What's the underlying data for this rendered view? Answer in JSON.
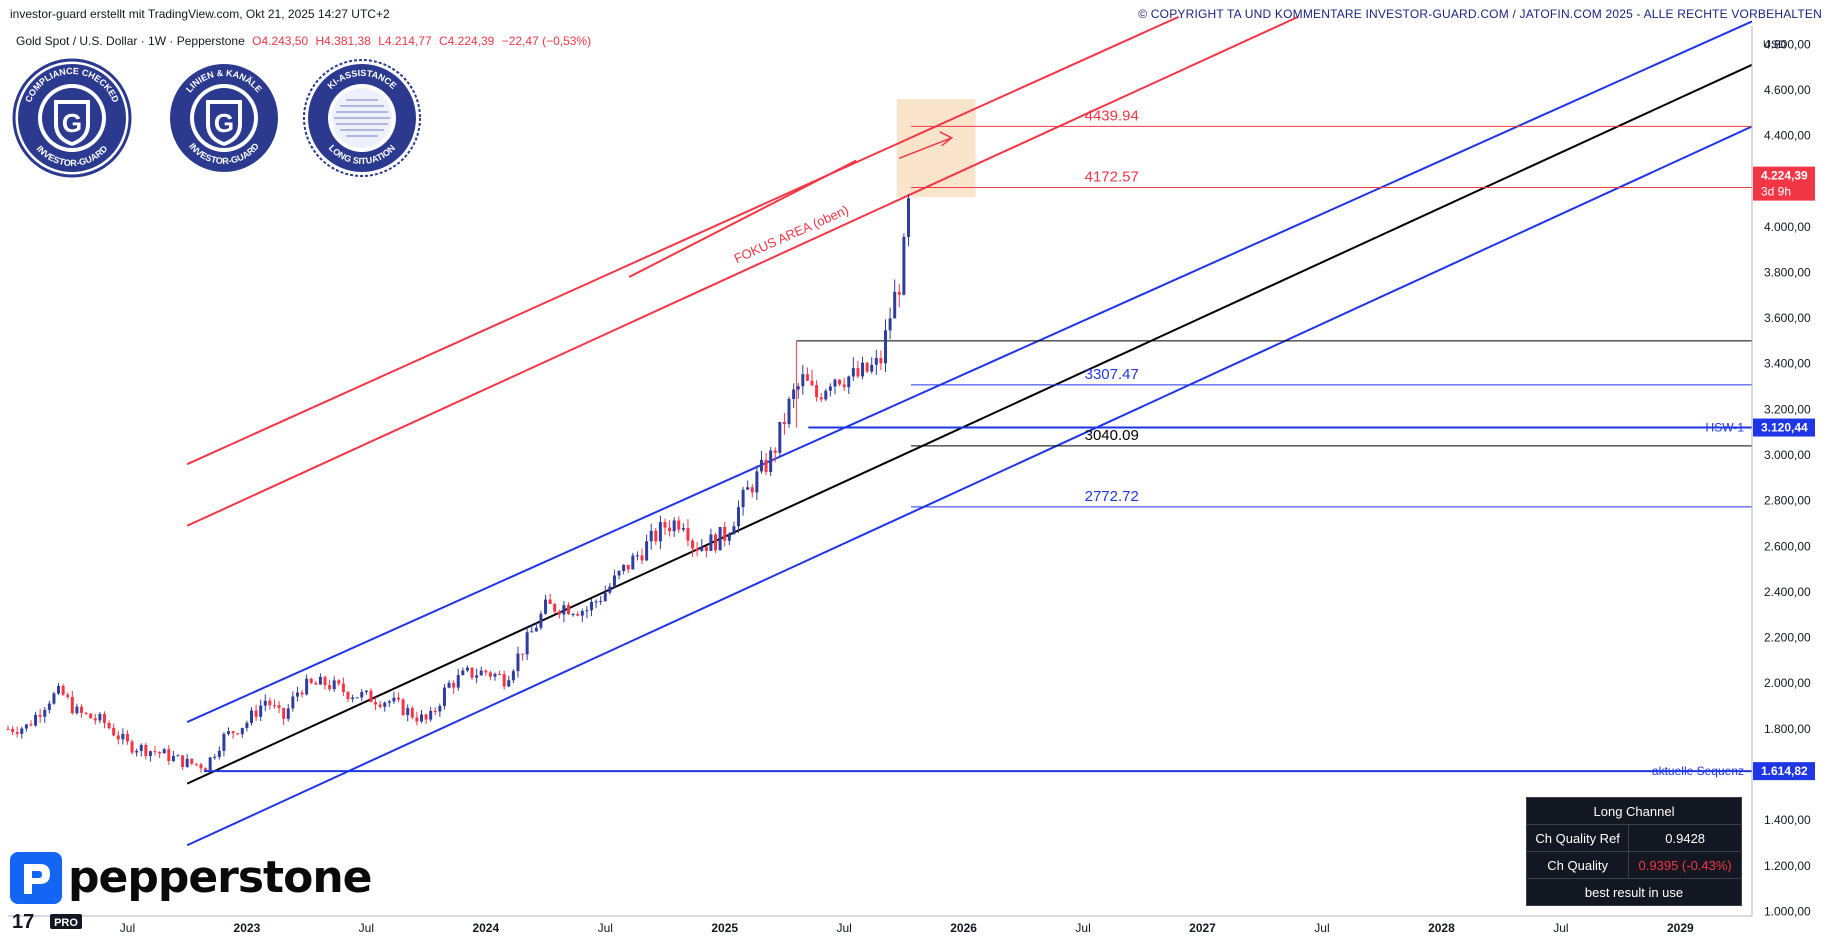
{
  "header": {
    "author_line": "investor-guard erstellt mit TradingView.com, Okt 21, 2025 14:27 UTC+2",
    "copyright": "© COPYRIGHT TA UND KOMMENTARE INVESTOR-GUARD.COM / JATOFIN.COM 2025 - ALLE RECHTE VORBEHALTEN"
  },
  "legend": {
    "symbol": "Gold Spot / U.S. Dollar · 1W · Pepperstone",
    "open": "O4.243,50",
    "high": "H4.381,38",
    "low": "L4.214,77",
    "close": "C4.224,39",
    "change": "−22,47 (−0,53%)"
  },
  "badges": [
    {
      "top": "COMPLIANCE CHECKED",
      "bottom": "INVESTOR-GUARD"
    },
    {
      "top": "LINIEN & KANÄLE",
      "bottom": "INVESTOR-GUARD"
    },
    {
      "top": "KI-ASSISTANCE",
      "bottom": "LONG SITUATION"
    }
  ],
  "logo": {
    "word": "pepperstone",
    "tv": "17",
    "tv_pro": "PRO"
  },
  "quality_table": {
    "title": "Long Channel",
    "rows": [
      {
        "label": "Ch Quality Ref",
        "value": "0.9428"
      },
      {
        "label": "Ch Quality",
        "value": "0.9395 (-0.43%)"
      }
    ],
    "footer": "best result in use"
  },
  "colors": {
    "up": "#2f3e9e",
    "down": "#f23645",
    "red_line": "#f23645",
    "blue_line": "#1e36e6",
    "mid_line": "#000000",
    "focus": "#f8c99a"
  },
  "chart_data": {
    "type": "candlestick",
    "title": "Gold Spot / U.S. Dollar · 1W · Pepperstone",
    "currency_label": "USD",
    "y_ticks": [
      "1.000,00",
      "1.200,00",
      "1.400,00",
      "1.600,00",
      "1.800,00",
      "2.000,00",
      "2.200,00",
      "2.400,00",
      "2.600,00",
      "2.800,00",
      "3.000,00",
      "3.200,00",
      "3.400,00",
      "3.600,00",
      "3.800,00",
      "4.000,00",
      "4.200,00",
      "4.400,00",
      "4.600,00",
      "4.800,00"
    ],
    "y_tick_values": [
      1000,
      1200,
      1400,
      1600,
      1800,
      2000,
      2200,
      2400,
      2600,
      2800,
      3000,
      3200,
      3400,
      3600,
      3800,
      4000,
      4200,
      4400,
      4600,
      4800
    ],
    "ylim": [
      980,
      4880
    ],
    "x_ticks": [
      {
        "label": "Jul",
        "t": 2022.5
      },
      {
        "label": "2023",
        "t": 2023.0
      },
      {
        "label": "Jul",
        "t": 2023.5
      },
      {
        "label": "2024",
        "t": 2024.0
      },
      {
        "label": "Jul",
        "t": 2024.5
      },
      {
        "label": "2025",
        "t": 2025.0
      },
      {
        "label": "Jul",
        "t": 2025.5
      },
      {
        "label": "2026",
        "t": 2026.0
      },
      {
        "label": "Jul",
        "t": 2026.5
      },
      {
        "label": "2027",
        "t": 2027.0
      },
      {
        "label": "Jul",
        "t": 2027.5
      },
      {
        "label": "2028",
        "t": 2028.0
      },
      {
        "label": "Jul",
        "t": 2028.5
      },
      {
        "label": "2029",
        "t": 2029.0
      }
    ],
    "xlim": [
      2022.0,
      2029.3
    ],
    "price_path": [
      [
        2022.0,
        1800
      ],
      [
        2022.08,
        1810
      ],
      [
        2022.17,
        1930
      ],
      [
        2022.22,
        1960
      ],
      [
        2022.29,
        1870
      ],
      [
        2022.4,
        1830
      ],
      [
        2022.5,
        1730
      ],
      [
        2022.62,
        1700
      ],
      [
        2022.75,
        1650
      ],
      [
        2022.83,
        1640
      ],
      [
        2022.9,
        1760
      ],
      [
        2023.0,
        1830
      ],
      [
        2023.08,
        1930
      ],
      [
        2023.15,
        1840
      ],
      [
        2023.22,
        1980
      ],
      [
        2023.33,
        2000
      ],
      [
        2023.42,
        1960
      ],
      [
        2023.5,
        1940
      ],
      [
        2023.6,
        1920
      ],
      [
        2023.7,
        1860
      ],
      [
        2023.76,
        1830
      ],
      [
        2023.84,
        1990
      ],
      [
        2023.92,
        2040
      ],
      [
        2024.0,
        2050
      ],
      [
        2024.08,
        2020
      ],
      [
        2024.17,
        2180
      ],
      [
        2024.25,
        2330
      ],
      [
        2024.33,
        2340
      ],
      [
        2024.42,
        2320
      ],
      [
        2024.5,
        2400
      ],
      [
        2024.58,
        2500
      ],
      [
        2024.67,
        2600
      ],
      [
        2024.75,
        2690
      ],
      [
        2024.83,
        2720
      ],
      [
        2024.87,
        2600
      ],
      [
        2024.95,
        2620
      ],
      [
        2025.0,
        2650
      ],
      [
        2025.1,
        2850
      ],
      [
        2025.2,
        3000
      ],
      [
        2025.28,
        3250
      ],
      [
        2025.33,
        3330
      ],
      [
        2025.38,
        3250
      ],
      [
        2025.45,
        3350
      ],
      [
        2025.55,
        3340
      ],
      [
        2025.65,
        3400
      ],
      [
        2025.7,
        3650
      ],
      [
        2025.73,
        3750
      ],
      [
        2025.76,
        3960
      ],
      [
        2025.78,
        4230
      ]
    ],
    "series": [
      {
        "name": "HSW-1",
        "value": 3120.44,
        "label": "3.120,44"
      },
      {
        "name": "aktuelle Sequenz",
        "value": 1614.82,
        "label": "1.614,82"
      },
      {
        "name": "last",
        "value": 4224.39,
        "label": "4.224,39",
        "sub": "3d 9h"
      }
    ],
    "levels": [
      {
        "value": 4439.94,
        "label": "4439.94",
        "color": "red"
      },
      {
        "value": 4172.57,
        "label": "4172.57",
        "color": "red"
      },
      {
        "value": 3307.47,
        "label": "3307.47",
        "color": "blue"
      },
      {
        "value": 3040.09,
        "label": "3040.09",
        "color": "black"
      },
      {
        "value": 2772.72,
        "label": "2772.72",
        "color": "blue"
      },
      {
        "value": 3500,
        "label": "",
        "color": "black"
      }
    ],
    "channels": [
      {
        "color": "red",
        "from": [
          2022.75,
          2960
        ],
        "to": [
          2026.9,
          4920
        ]
      },
      {
        "color": "red",
        "from": [
          2022.75,
          2690
        ],
        "to": [
          2027.4,
          4920
        ]
      },
      {
        "color": "blue",
        "from": [
          2022.75,
          1830
        ],
        "to": [
          2029.3,
          4900
        ]
      },
      {
        "color": "black",
        "from": [
          2022.75,
          1560
        ],
        "to": [
          2029.3,
          4710
        ]
      },
      {
        "color": "blue",
        "from": [
          2022.75,
          1290
        ],
        "to": [
          2029.3,
          4440
        ]
      }
    ],
    "annotation": "FOKUS AREA (oben)"
  }
}
